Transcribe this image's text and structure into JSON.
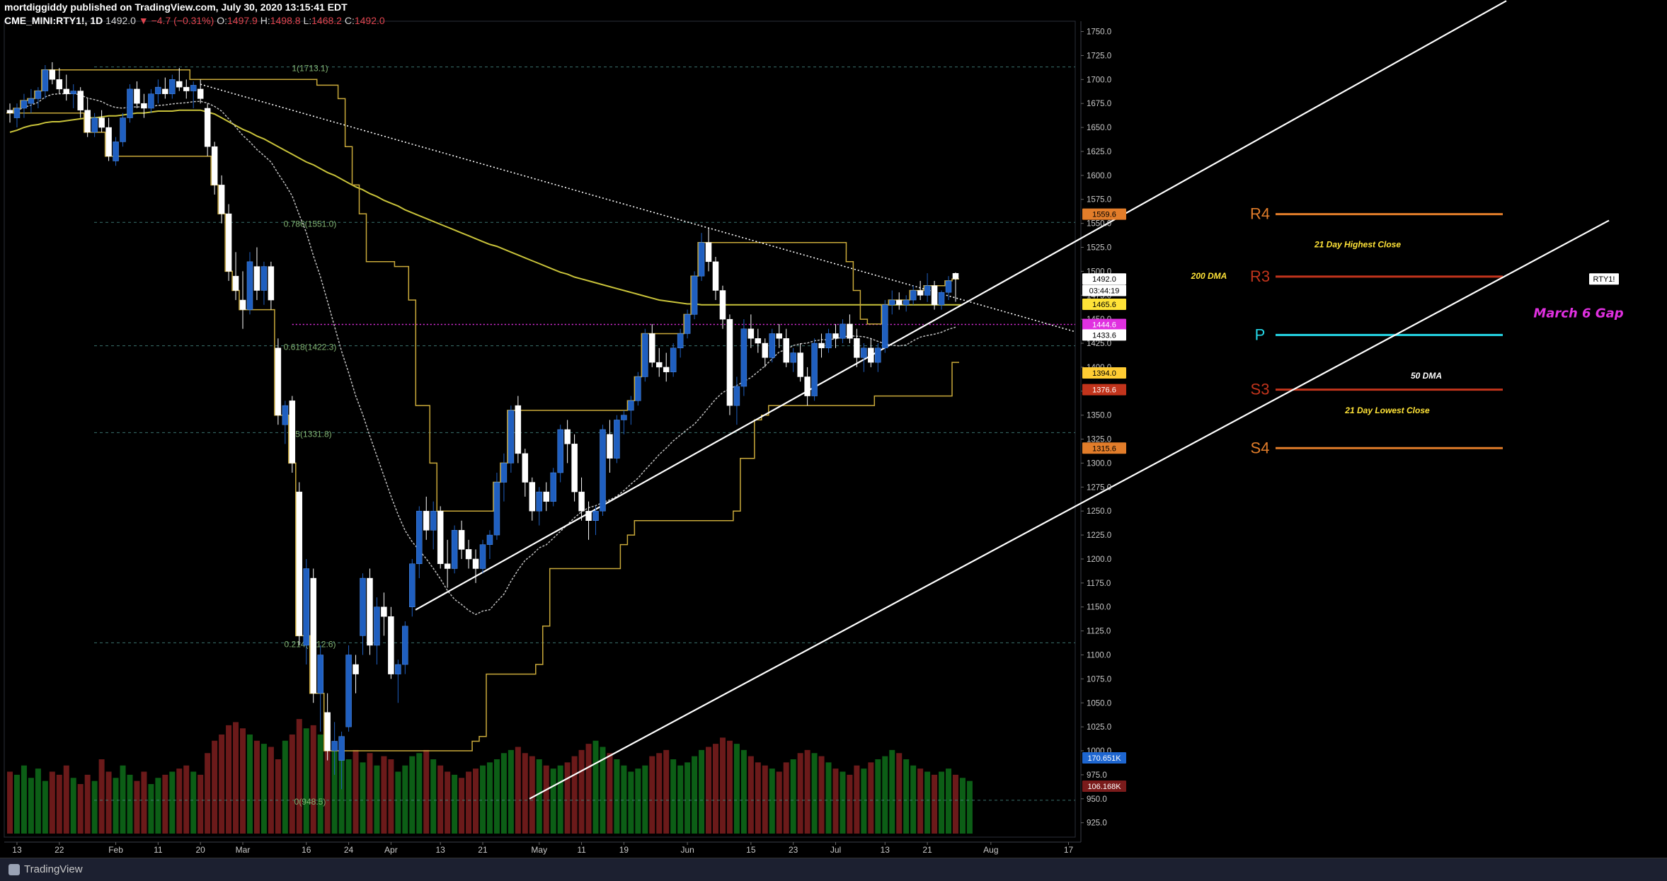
{
  "header": {
    "line1": "mortdiggiddy published on TradingView.com, July 30, 2020 13:15:41 EDT",
    "symbol": "CME_MINI:RTY1!, 1D",
    "last": "1492.0",
    "change": "▼ −4.7 (−0.31%)",
    "o_label": "O:",
    "o": "1497.9",
    "h_label": "H:",
    "h": "1498.8",
    "l_label": "L:",
    "l": "1468.2",
    "c_label": "C:",
    "c": "1492.0"
  },
  "footer": {
    "brand": "TradingView"
  },
  "colors": {
    "up_candle": "#1f5fc0",
    "down_candle": "#ffffff",
    "vol_up": "#0c5e16",
    "vol_down": "#6b1a1a",
    "ma200": "#c8c23a",
    "donchian": "#c9a93a",
    "pivot_orange": "#e27d2a",
    "pivot_red": "#c2341c",
    "pivot_cyan": "#25d8e8",
    "gap": "#e030e0"
  },
  "chart_data": {
    "type": "candlestick",
    "title": "",
    "y_axis": {
      "min": 910,
      "max": 1760,
      "ticks": [
        "1750.0",
        "1725.0",
        "1700.0",
        "1675.0",
        "1650.0",
        "1625.0",
        "1600.0",
        "1575.0",
        "1550.0",
        "1525.0",
        "1500.0",
        "1475.0",
        "1450.0",
        "1425.0",
        "1400.0",
        "1375.0",
        "1350.0",
        "1325.0",
        "1300.0",
        "1275.0",
        "1250.0",
        "1225.0",
        "1200.0",
        "1175.0",
        "1150.0",
        "1125.0",
        "1100.0",
        "1075.0",
        "1050.0",
        "1025.0",
        "1000.0",
        "975.0",
        "950.0",
        "925.0"
      ]
    },
    "x_axis": {
      "ticks": [
        {
          "label": "13",
          "bar": 1
        },
        {
          "label": "22",
          "bar": 7
        },
        {
          "label": "Feb",
          "bar": 15
        },
        {
          "label": "11",
          "bar": 21
        },
        {
          "label": "20",
          "bar": 27
        },
        {
          "label": "Mar",
          "bar": 33
        },
        {
          "label": "16",
          "bar": 42
        },
        {
          "label": "24",
          "bar": 48
        },
        {
          "label": "Apr",
          "bar": 54
        },
        {
          "label": "13",
          "bar": 61
        },
        {
          "label": "21",
          "bar": 67
        },
        {
          "label": "May",
          "bar": 75
        },
        {
          "label": "11",
          "bar": 81
        },
        {
          "label": "19",
          "bar": 87
        },
        {
          "label": "Jun",
          "bar": 96
        },
        {
          "label": "15",
          "bar": 105
        },
        {
          "label": "23",
          "bar": 111
        },
        {
          "label": "Jul",
          "bar": 117
        },
        {
          "label": "13",
          "bar": 124
        },
        {
          "label": "21",
          "bar": 130
        },
        {
          "label": "Aug",
          "bar": 139
        },
        {
          "label": "17",
          "bar": 150
        }
      ]
    },
    "candles": [
      [
        1668,
        1675,
        1655,
        1665
      ],
      [
        1660,
        1675,
        1650,
        1670
      ],
      [
        1670,
        1685,
        1660,
        1678
      ],
      [
        1675,
        1690,
        1665,
        1680
      ],
      [
        1680,
        1692,
        1670,
        1688
      ],
      [
        1688,
        1715,
        1680,
        1710
      ],
      [
        1710,
        1718,
        1695,
        1700
      ],
      [
        1700,
        1712,
        1685,
        1690
      ],
      [
        1690,
        1705,
        1678,
        1685
      ],
      [
        1685,
        1695,
        1670,
        1688
      ],
      [
        1688,
        1692,
        1660,
        1668
      ],
      [
        1668,
        1680,
        1640,
        1645
      ],
      [
        1645,
        1665,
        1640,
        1660
      ],
      [
        1660,
        1668,
        1645,
        1650
      ],
      [
        1650,
        1660,
        1615,
        1620
      ],
      [
        1615,
        1640,
        1610,
        1635
      ],
      [
        1635,
        1665,
        1630,
        1660
      ],
      [
        1660,
        1695,
        1655,
        1690
      ],
      [
        1690,
        1698,
        1670,
        1675
      ],
      [
        1675,
        1685,
        1660,
        1670
      ],
      [
        1670,
        1690,
        1665,
        1685
      ],
      [
        1685,
        1700,
        1675,
        1692
      ],
      [
        1690,
        1702,
        1680,
        1685
      ],
      [
        1685,
        1705,
        1680,
        1700
      ],
      [
        1698,
        1712,
        1688,
        1692
      ],
      [
        1692,
        1700,
        1680,
        1688
      ],
      [
        1688,
        1698,
        1670,
        1694
      ],
      [
        1690,
        1700,
        1675,
        1680
      ],
      [
        1670,
        1675,
        1620,
        1630
      ],
      [
        1630,
        1635,
        1580,
        1590
      ],
      [
        1590,
        1600,
        1550,
        1560
      ],
      [
        1560,
        1570,
        1490,
        1500
      ],
      [
        1495,
        1520,
        1470,
        1480
      ],
      [
        1470,
        1500,
        1440,
        1460
      ],
      [
        1460,
        1520,
        1455,
        1510
      ],
      [
        1505,
        1525,
        1470,
        1480
      ],
      [
        1480,
        1510,
        1465,
        1505
      ],
      [
        1505,
        1510,
        1460,
        1470
      ],
      [
        1420,
        1430,
        1340,
        1350
      ],
      [
        1340,
        1365,
        1320,
        1360
      ],
      [
        1365,
        1370,
        1290,
        1300
      ],
      [
        1270,
        1280,
        1110,
        1120
      ],
      [
        1110,
        1200,
        1090,
        1190
      ],
      [
        1180,
        1190,
        1050,
        1060
      ],
      [
        1060,
        1110,
        1020,
        1100
      ],
      [
        1040,
        1060,
        990,
        1000
      ],
      [
        1000,
        1030,
        975,
        1010
      ],
      [
        990,
        1020,
        960,
        1015
      ],
      [
        1025,
        1110,
        1020,
        1100
      ],
      [
        1090,
        1100,
        1060,
        1080
      ],
      [
        1120,
        1185,
        1100,
        1180
      ],
      [
        1180,
        1190,
        1100,
        1110
      ],
      [
        1110,
        1160,
        1090,
        1150
      ],
      [
        1150,
        1165,
        1120,
        1140
      ],
      [
        1140,
        1150,
        1075,
        1080
      ],
      [
        1080,
        1095,
        1050,
        1090
      ],
      [
        1090,
        1135,
        1080,
        1130
      ],
      [
        1150,
        1200,
        1140,
        1195
      ],
      [
        1195,
        1255,
        1180,
        1250
      ],
      [
        1250,
        1265,
        1220,
        1230
      ],
      [
        1230,
        1260,
        1210,
        1250
      ],
      [
        1250,
        1255,
        1190,
        1195
      ],
      [
        1195,
        1220,
        1170,
        1190
      ],
      [
        1190,
        1235,
        1185,
        1230
      ],
      [
        1230,
        1240,
        1200,
        1210
      ],
      [
        1210,
        1220,
        1190,
        1200
      ],
      [
        1200,
        1210,
        1175,
        1190
      ],
      [
        1190,
        1220,
        1185,
        1215
      ],
      [
        1215,
        1230,
        1200,
        1225
      ],
      [
        1225,
        1290,
        1220,
        1280
      ],
      [
        1280,
        1310,
        1260,
        1300
      ],
      [
        1300,
        1360,
        1290,
        1355
      ],
      [
        1360,
        1370,
        1300,
        1310
      ],
      [
        1310,
        1315,
        1265,
        1280
      ],
      [
        1280,
        1285,
        1240,
        1250
      ],
      [
        1250,
        1275,
        1235,
        1270
      ],
      [
        1270,
        1280,
        1250,
        1260
      ],
      [
        1260,
        1295,
        1255,
        1290
      ],
      [
        1290,
        1340,
        1280,
        1335
      ],
      [
        1335,
        1345,
        1300,
        1320
      ],
      [
        1320,
        1330,
        1260,
        1270
      ],
      [
        1270,
        1285,
        1240,
        1250
      ],
      [
        1250,
        1260,
        1220,
        1240
      ],
      [
        1240,
        1255,
        1225,
        1250
      ],
      [
        1250,
        1340,
        1245,
        1335
      ],
      [
        1330,
        1345,
        1290,
        1305
      ],
      [
        1305,
        1350,
        1300,
        1345
      ],
      [
        1345,
        1355,
        1330,
        1350
      ],
      [
        1355,
        1370,
        1340,
        1365
      ],
      [
        1365,
        1395,
        1360,
        1390
      ],
      [
        1390,
        1440,
        1385,
        1435
      ],
      [
        1435,
        1445,
        1400,
        1405
      ],
      [
        1405,
        1420,
        1390,
        1400
      ],
      [
        1400,
        1415,
        1385,
        1395
      ],
      [
        1395,
        1425,
        1390,
        1420
      ],
      [
        1420,
        1440,
        1410,
        1435
      ],
      [
        1435,
        1460,
        1430,
        1455
      ],
      [
        1455,
        1500,
        1450,
        1495
      ],
      [
        1495,
        1540,
        1490,
        1530
      ],
      [
        1530,
        1545,
        1500,
        1510
      ],
      [
        1510,
        1515,
        1470,
        1480
      ],
      [
        1480,
        1485,
        1440,
        1450
      ],
      [
        1450,
        1455,
        1350,
        1360
      ],
      [
        1360,
        1390,
        1340,
        1380
      ],
      [
        1380,
        1450,
        1370,
        1440
      ],
      [
        1440,
        1455,
        1420,
        1430
      ],
      [
        1430,
        1440,
        1415,
        1425
      ],
      [
        1425,
        1430,
        1400,
        1410
      ],
      [
        1410,
        1440,
        1405,
        1435
      ],
      [
        1435,
        1445,
        1420,
        1430
      ],
      [
        1430,
        1440,
        1400,
        1405
      ],
      [
        1405,
        1420,
        1395,
        1415
      ],
      [
        1415,
        1425,
        1385,
        1390
      ],
      [
        1390,
        1400,
        1360,
        1370
      ],
      [
        1370,
        1430,
        1365,
        1425
      ],
      [
        1425,
        1435,
        1410,
        1420
      ],
      [
        1420,
        1440,
        1415,
        1435
      ],
      [
        1435,
        1445,
        1420,
        1430
      ],
      [
        1430,
        1450,
        1425,
        1445
      ],
      [
        1445,
        1455,
        1425,
        1430
      ],
      [
        1430,
        1440,
        1400,
        1410
      ],
      [
        1410,
        1425,
        1395,
        1420
      ],
      [
        1420,
        1430,
        1400,
        1405
      ],
      [
        1405,
        1425,
        1395,
        1420
      ],
      [
        1420,
        1470,
        1415,
        1465
      ],
      [
        1465,
        1480,
        1455,
        1470
      ],
      [
        1470,
        1478,
        1460,
        1465
      ],
      [
        1465,
        1475,
        1458,
        1470
      ],
      [
        1470,
        1485,
        1465,
        1480
      ],
      [
        1480,
        1490,
        1470,
        1475
      ],
      [
        1475,
        1498,
        1468,
        1485
      ],
      [
        1485,
        1490,
        1460,
        1465
      ],
      [
        1465,
        1480,
        1460,
        1478
      ],
      [
        1478,
        1495,
        1470,
        1490
      ],
      [
        1497.9,
        1498.8,
        1468.2,
        1492.0
      ]
    ],
    "volume": [
      100,
      95,
      110,
      90,
      105,
      85,
      100,
      95,
      110,
      90,
      80,
      95,
      85,
      120,
      100,
      90,
      110,
      95,
      85,
      100,
      80,
      90,
      95,
      100,
      105,
      110,
      100,
      95,
      130,
      150,
      160,
      175,
      180,
      170,
      160,
      150,
      145,
      140,
      120,
      150,
      160,
      185,
      170,
      175,
      160,
      175,
      140,
      130,
      120,
      135,
      115,
      130,
      110,
      125,
      120,
      100,
      110,
      125,
      130,
      135,
      120,
      110,
      100,
      95,
      90,
      100,
      105,
      110,
      115,
      120,
      130,
      135,
      140,
      130,
      125,
      120,
      110,
      105,
      110,
      115,
      125,
      135,
      145,
      150,
      140,
      130,
      120,
      110,
      100,
      105,
      110,
      125,
      130,
      135,
      120,
      110,
      115,
      125,
      135,
      140,
      145,
      155,
      150,
      145,
      135,
      125,
      115,
      110,
      105,
      100,
      115,
      120,
      130,
      135,
      130,
      125,
      115,
      105,
      100,
      95,
      110,
      105,
      115,
      120,
      125,
      135,
      130,
      120,
      110,
      105,
      100,
      95,
      100,
      105,
      95,
      90,
      85
    ],
    "volume_scale_max": 320,
    "indicators": {
      "ma200_label": "200 DMA",
      "ma50_label": "50 DMA",
      "donchian_high_label": "21 Day Highest Close",
      "donchian_low_label": "21 Day Lowest Close",
      "gap_label": "March 6 Gap",
      "gap_level": 1444.6
    },
    "pivots": [
      {
        "label": "R4",
        "value": 1559.6,
        "from_bar": 122,
        "to_bar": 138,
        "color": "#e27d2a"
      },
      {
        "label": "R3",
        "value": 1494.5,
        "from_bar": 122,
        "to_bar": 138,
        "color": "#c2341c"
      },
      {
        "label": "P",
        "value": 1433.6,
        "from_bar": 120,
        "to_bar": 138,
        "color": "#25d8e8"
      },
      {
        "label": "S3",
        "value": 1376.6,
        "from_bar": 120,
        "to_bar": 138,
        "color": "#c2341c"
      },
      {
        "label": "S4",
        "value": 1315.6,
        "from_bar": 122,
        "to_bar": 138,
        "color": "#e27d2a"
      }
    ],
    "fib_levels": [
      {
        "label": "1(1713.1)",
        "value": 1713.1
      },
      {
        "label": "0.786(1551.0)",
        "value": 1551.0
      },
      {
        "label": "0.618(1422.3)",
        "value": 1422.3
      },
      {
        "label": "0.5(1331.8)",
        "value": 1331.8
      },
      {
        "label": "0.214(1112.6)",
        "value": 1112.6
      },
      {
        "label": "0(948.5)",
        "value": 948.5
      }
    ],
    "price_badges": [
      {
        "text": "1559.6",
        "value": 1559.6,
        "bg": "#e27d2a",
        "fg": "#000"
      },
      {
        "text": "RTY1!",
        "value": 1492.0,
        "bg": "#ffffff",
        "fg": "#000",
        "side": "left"
      },
      {
        "text": "1492.0",
        "value": 1492.0,
        "bg": "#ffffff",
        "fg": "#000"
      },
      {
        "text": "03:44:19",
        "value": 1480.0,
        "bg": "#ffffff",
        "fg": "#000"
      },
      {
        "text": "1465.6",
        "value": 1465.6,
        "bg": "#ffe338",
        "fg": "#000"
      },
      {
        "text": "1444.6",
        "value": 1444.6,
        "bg": "#e030e0",
        "fg": "#fff"
      },
      {
        "text": "1433.6",
        "value": 1433.6,
        "bg": "#ffffff",
        "fg": "#000"
      },
      {
        "text": "1394.0",
        "value": 1394.0,
        "bg": "#ffcc33",
        "fg": "#000"
      },
      {
        "text": "1376.6",
        "value": 1376.6,
        "bg": "#c2341c",
        "fg": "#fff"
      },
      {
        "text": "1315.6",
        "value": 1315.6,
        "bg": "#e27d2a",
        "fg": "#000"
      }
    ],
    "volume_badges": [
      {
        "text": "170.651K",
        "bg": "#1e66d0",
        "fg": "#fff"
      },
      {
        "text": "106.168K",
        "bg": "#7a1b1b",
        "fg": "#fff"
      }
    ]
  }
}
